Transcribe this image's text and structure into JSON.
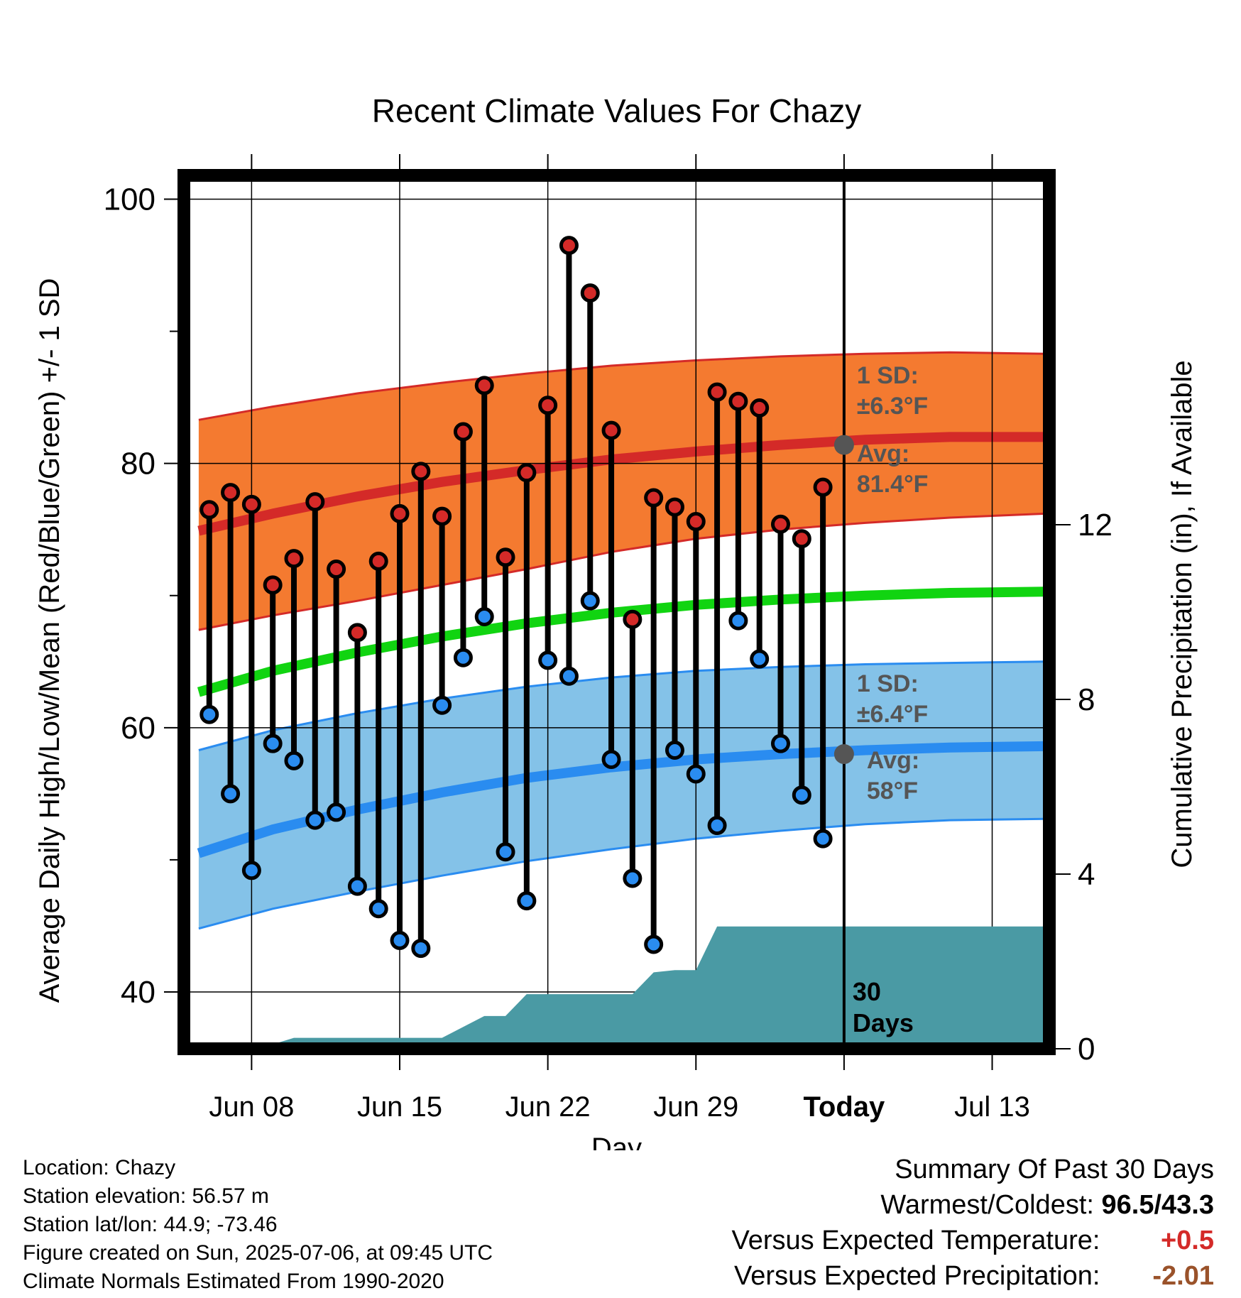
{
  "chart_data": {
    "type": "line",
    "title": "Recent Climate Values For Chazy",
    "xlabel": "Day",
    "ylabel": "Average Daily High/Low/Mean (Red/Blue/Green) +/- 1 SD",
    "y2label": "Cumulative Precipitation (in), If Available",
    "ylim": [
      35.7,
      101.8
    ],
    "y2lim": [
      0,
      20
    ],
    "y_ticks": [
      40,
      60,
      80,
      100
    ],
    "y2_ticks": [
      0,
      4,
      8,
      12
    ],
    "x_tick_labels": [
      "Jun 08",
      "Jun 15",
      "Jun 22",
      "Jun 29",
      "Today",
      "Jul 13"
    ],
    "x_tick_days": [
      8,
      15,
      22,
      29,
      36,
      43
    ],
    "x_range_days": [
      4.8,
      45.7
    ],
    "today_day": 36,
    "grid": true,
    "colors": {
      "high_band": "#f47a30",
      "high_line": "#d42a28",
      "low_band": "#84c2e8",
      "low_line": "#2a8cf0",
      "mean_line": "#11d411",
      "precip_fill": "#4a9aa4",
      "high_dot": "#d42a28",
      "low_dot": "#2a8cf0",
      "stem": "#000000"
    },
    "normals": {
      "days": [
        5.5,
        9,
        13,
        17,
        21,
        25,
        29,
        33,
        37,
        41,
        45.5
      ],
      "high_mean": [
        74.9,
        76.2,
        77.5,
        78.6,
        79.5,
        80.3,
        80.9,
        81.4,
        81.8,
        82.0,
        82.0
      ],
      "high_plus_sd": [
        83.3,
        84.3,
        85.3,
        86.1,
        86.8,
        87.4,
        87.8,
        88.1,
        88.3,
        88.4,
        88.3
      ],
      "high_minus_sd": [
        67.4,
        68.5,
        69.6,
        70.8,
        72.0,
        73.3,
        74.3,
        75.0,
        75.5,
        75.9,
        76.2
      ],
      "mean": [
        62.7,
        64.3,
        65.7,
        66.9,
        67.9,
        68.7,
        69.3,
        69.7,
        70.0,
        70.2,
        70.3
      ],
      "low_mean": [
        50.5,
        52.3,
        53.8,
        55.1,
        56.2,
        57.0,
        57.6,
        58.0,
        58.3,
        58.5,
        58.6
      ],
      "low_plus_sd": [
        58.3,
        59.8,
        61.1,
        62.2,
        63.1,
        63.8,
        64.3,
        64.6,
        64.8,
        64.9,
        65.0
      ],
      "low_minus_sd": [
        44.8,
        46.3,
        47.6,
        48.8,
        49.9,
        50.8,
        51.6,
        52.2,
        52.7,
        53.0,
        53.1
      ]
    },
    "series": [
      {
        "name": "High",
        "days": [
          6,
          7,
          8,
          9,
          10,
          11,
          12,
          13,
          14,
          15,
          16,
          17,
          18,
          19,
          20,
          21,
          22,
          23,
          24,
          25,
          26,
          27,
          28,
          29,
          30,
          31,
          32,
          33,
          34,
          35
        ],
        "values": [
          76.5,
          77.8,
          76.9,
          70.8,
          72.8,
          77.1,
          72.0,
          67.2,
          72.6,
          76.2,
          79.4,
          76.0,
          82.4,
          85.9,
          72.9,
          79.3,
          84.4,
          96.5,
          92.9,
          82.5,
          68.2,
          77.4,
          76.7,
          75.6,
          85.4,
          84.7,
          84.2,
          75.4,
          74.3,
          78.2
        ]
      },
      {
        "name": "Low",
        "days": [
          6,
          7,
          8,
          9,
          10,
          11,
          12,
          13,
          14,
          15,
          16,
          17,
          18,
          19,
          20,
          21,
          22,
          23,
          24,
          25,
          26,
          27,
          28,
          29,
          30,
          31,
          32,
          33,
          34,
          35
        ],
        "values": [
          61.0,
          55.0,
          49.2,
          58.8,
          57.5,
          53.0,
          53.6,
          48.0,
          46.3,
          43.9,
          43.3,
          61.7,
          65.3,
          68.4,
          50.6,
          46.9,
          65.1,
          63.9,
          69.6,
          57.6,
          48.6,
          43.6,
          58.3,
          56.5,
          52.6,
          68.1,
          65.2,
          58.8,
          54.9,
          51.6
        ]
      },
      {
        "name": "Cumulative Precipitation",
        "days": [
          4.8,
          6,
          7,
          8,
          9,
          10,
          11,
          12,
          13,
          14,
          15,
          16,
          17,
          18,
          19,
          20,
          21,
          22,
          23,
          24,
          25,
          26,
          27,
          28,
          29,
          30,
          31,
          32,
          33,
          34,
          35,
          36,
          37,
          38,
          39,
          40,
          41,
          42,
          43,
          44,
          45.7
        ],
        "values": [
          0,
          0,
          0,
          0,
          0.1,
          0.25,
          0.25,
          0.25,
          0.25,
          0.25,
          0.25,
          0.25,
          0.25,
          0.5,
          0.75,
          0.75,
          1.25,
          1.25,
          1.25,
          1.25,
          1.25,
          1.25,
          1.75,
          1.8,
          1.8,
          2.8,
          2.8,
          2.8,
          2.8,
          2.8,
          2.8,
          2.8,
          2.8,
          2.8,
          2.8,
          2.8,
          2.8,
          2.8,
          2.8,
          2.8,
          2.8
        ]
      }
    ],
    "annotations": {
      "high_sd_label": "1 SD:",
      "high_sd_value": "±6.3°F",
      "high_avg_label": "Avg:",
      "high_avg_value": "81.4°F",
      "high_avg_point": 81.4,
      "low_sd_label": "1 SD:",
      "low_sd_value": "±6.4°F",
      "low_avg_label": "Avg:",
      "low_avg_value": "58°F",
      "low_avg_point": 58,
      "precip_label_1": "30",
      "precip_label_2": "Days"
    }
  },
  "footer_left": {
    "location": "Location: Chazy",
    "elevation": "Station elevation: 56.57 m",
    "latlon": "Station lat/lon: 44.9; -73.46",
    "created": "Figure created on Sun, 2025-07-06, at 09:45 UTC",
    "normals": "Climate Normals Estimated From 1990-2020"
  },
  "summary": {
    "heading": "Summary Of Past 30 Days",
    "warm_cold_label": "Warmest/Coldest:",
    "warm_cold_value": "96.5/43.3",
    "temp_label": "Versus Expected Temperature:",
    "temp_value": "+0.5",
    "temp_color": "#d42a28",
    "precip_label": "Versus Expected Precipitation:",
    "precip_value": "-2.01",
    "precip_color": "#9a522a"
  }
}
